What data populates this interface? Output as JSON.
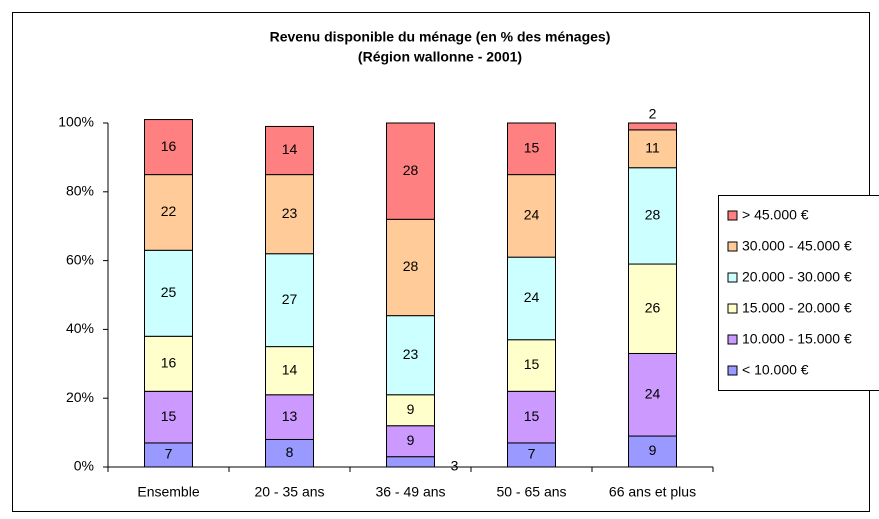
{
  "chart_data": {
    "type": "stacked-bar",
    "title": "Revenu disponible du ménage (en % des ménages)",
    "subtitle": "(Région wallonne - 2001)",
    "categories": [
      "Ensemble",
      "20 - 35 ans",
      "36 - 49 ans",
      "50 - 65 ans",
      "66 ans et plus"
    ],
    "series": [
      {
        "name": "< 10.000 €",
        "color": "#9999ff",
        "values": [
          7,
          8,
          3,
          7,
          9
        ]
      },
      {
        "name": "10.000 - 15.000 €",
        "color": "#cc99ff",
        "values": [
          15,
          13,
          9,
          15,
          24
        ]
      },
      {
        "name": "15.000 - 20.000 €",
        "color": "#ffffcc",
        "values": [
          16,
          14,
          9,
          15,
          26
        ]
      },
      {
        "name": "20.000 - 30.000 €",
        "color": "#ccffff",
        "values": [
          25,
          27,
          23,
          24,
          28
        ]
      },
      {
        "name": "30.000 - 45.000 €",
        "color": "#ffcc99",
        "values": [
          22,
          23,
          28,
          24,
          11
        ]
      },
      {
        "name": "> 45.000 €",
        "color": "#ff8080",
        "values": [
          16,
          14,
          28,
          15,
          2
        ]
      }
    ],
    "ylim": [
      0,
      100
    ],
    "yticks": [
      {
        "value": 0,
        "label": "0%"
      },
      {
        "value": 20,
        "label": "20%"
      },
      {
        "value": 40,
        "label": "40%"
      },
      {
        "value": 60,
        "label": "60%"
      },
      {
        "value": 80,
        "label": "80%"
      },
      {
        "value": 100,
        "label": "100%"
      }
    ],
    "grid": false,
    "legend": "right"
  }
}
